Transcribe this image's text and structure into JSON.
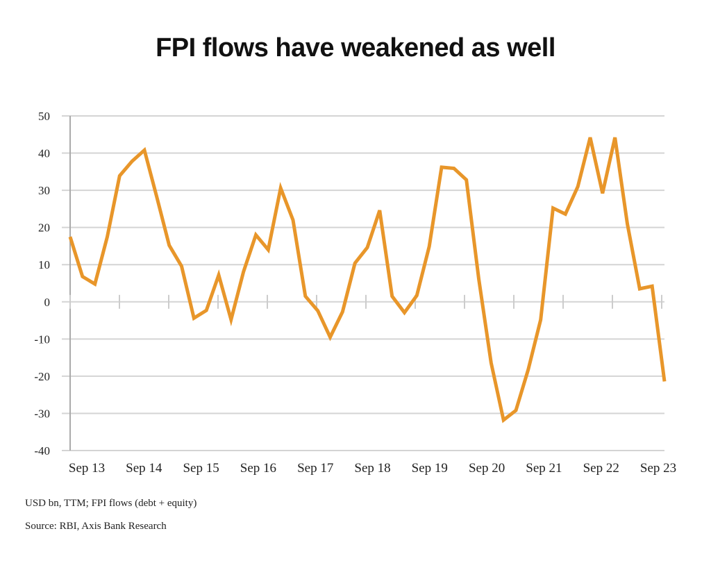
{
  "chart_data": {
    "type": "line",
    "title": "FPI flows have weakened as well",
    "xlabel": "",
    "ylabel": "",
    "ylim": [
      -40,
      50
    ],
    "yticks": [
      50,
      40,
      30,
      20,
      10,
      0,
      -10,
      -20,
      -30,
      -40
    ],
    "xtick_labels": [
      "Sep 13",
      "Sep 14",
      "Sep 15",
      "Sep 16",
      "Sep 17",
      "Sep 18",
      "Sep 19",
      "Sep 20",
      "Sep 21",
      "Sep 22",
      "Sep 23"
    ],
    "grid": true,
    "line_color": "#E8962A",
    "series": [
      {
        "name": "FPI flows (debt + equity)",
        "values": [
          17.5,
          6.8,
          4.8,
          17.5,
          33.9,
          37.8,
          40.8,
          28.2,
          15.2,
          9.6,
          -4.4,
          -2.3,
          7.2,
          -4.8,
          8.1,
          18.0,
          14.0,
          30.6,
          22.0,
          1.5,
          -2.4,
          -9.5,
          -2.7,
          10.4,
          14.6,
          24.6,
          1.5,
          -2.9,
          1.7,
          14.9,
          36.2,
          35.9,
          32.8,
          6.2,
          -16.4,
          -31.8,
          -29.2,
          -18.2,
          -4.8,
          25.2,
          23.6,
          31.0,
          44.2,
          29.2,
          44.2,
          21.0,
          3.5,
          4.2,
          -21.4
        ]
      }
    ]
  },
  "footnotes": {
    "units": "USD bn, TTM;   FPI flows (debt + equity)",
    "source": "Source: RBI, Axis Bank Research"
  }
}
